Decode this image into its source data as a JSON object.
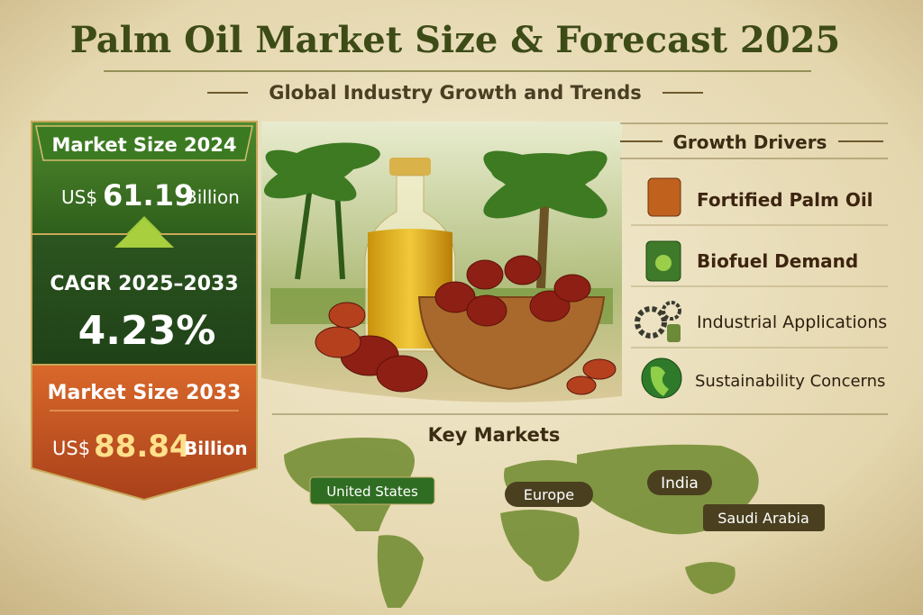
{
  "header": {
    "title": "Palm Oil Market Size & Forecast 2025",
    "subtitle": "Global Industry Growth and Trends"
  },
  "panel": {
    "size_2024": {
      "label": "Market Size 2024",
      "prefix": "US$",
      "value": "61.19",
      "unit": "Billion"
    },
    "cagr": {
      "label": "CAGR 2025–2033",
      "value": "4.23%"
    },
    "size_2033": {
      "label": "Market Size 2033",
      "prefix": "US$",
      "value": "88.84",
      "unit": "Billion"
    }
  },
  "drivers": {
    "title": "Growth Drivers",
    "items": [
      "Fortified Palm Oil",
      "Biofuel Demand",
      "Industrial Applications",
      "Sustainability Concerns"
    ]
  },
  "markets": {
    "title": "Key Markets",
    "items": [
      "United States",
      "Europe",
      "India",
      "Saudi Arabia"
    ]
  }
}
